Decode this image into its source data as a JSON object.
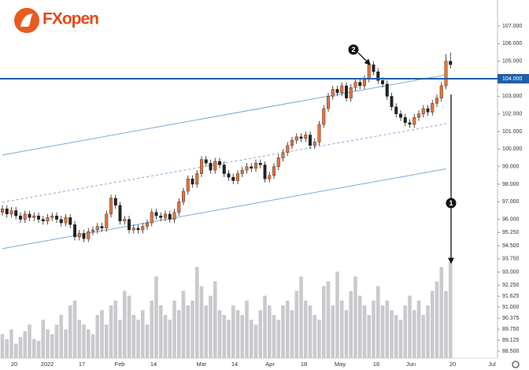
{
  "chart_data": {
    "type": "candlestick",
    "logo": "FXopen",
    "open": [
      96.4,
      96.6,
      96.3,
      96.5,
      96.2,
      96.0,
      96.3,
      96.1,
      96.2,
      96.0,
      95.9,
      96.1,
      96.2,
      96.0,
      95.8,
      96.1,
      95.7,
      95.0,
      95.2,
      94.9,
      95.3,
      95.4,
      95.6,
      95.5,
      96.3,
      97.2,
      96.8,
      95.9,
      96.0,
      95.4,
      95.5,
      95.4,
      95.6,
      95.8,
      96.4,
      96.2,
      96.1,
      96.3,
      96.0,
      96.4,
      97.0,
      97.6,
      98.3,
      98.0,
      98.6,
      99.4,
      99.2,
      98.8,
      99.3,
      99.1,
      98.6,
      98.4,
      98.2,
      98.6,
      98.8,
      99.0,
      98.9,
      99.2,
      99.1,
      98.3,
      98.5,
      99.0,
      99.5,
      99.8,
      100.2,
      100.5,
      100.7,
      100.6,
      100.8,
      100.2,
      100.4,
      101.4,
      102.3,
      103.0,
      103.4,
      103.2,
      103.6,
      102.9,
      103.5,
      103.8,
      103.6,
      104.0,
      104.8,
      104.4,
      103.9,
      103.7,
      103.0,
      102.4,
      102.0,
      101.8,
      101.5,
      101.4,
      101.8,
      102.0,
      102.3,
      102.1,
      102.6,
      102.9,
      103.6,
      105.0
    ],
    "high": [
      96.8,
      96.8,
      96.7,
      96.7,
      96.4,
      96.5,
      96.5,
      96.4,
      96.4,
      96.2,
      96.3,
      96.4,
      96.4,
      96.2,
      96.3,
      96.3,
      95.9,
      95.4,
      95.4,
      95.5,
      95.6,
      95.8,
      95.8,
      96.5,
      97.4,
      97.4,
      97.0,
      96.2,
      96.2,
      95.7,
      95.7,
      95.8,
      96.0,
      96.6,
      96.6,
      96.4,
      96.5,
      96.5,
      96.6,
      97.2,
      97.8,
      98.5,
      98.5,
      98.8,
      99.6,
      99.6,
      99.4,
      99.5,
      99.5,
      99.3,
      98.8,
      98.6,
      98.8,
      99.0,
      99.2,
      99.2,
      99.4,
      99.4,
      99.3,
      98.7,
      99.2,
      99.7,
      100.0,
      100.4,
      100.7,
      100.9,
      100.9,
      101.0,
      101.0,
      100.6,
      101.6,
      102.5,
      103.2,
      103.6,
      103.6,
      103.8,
      103.8,
      103.7,
      104.0,
      104.0,
      104.2,
      105.0,
      105.0,
      104.6,
      104.1,
      103.9,
      103.2,
      102.6,
      102.2,
      102.0,
      101.7,
      102.0,
      102.2,
      102.5,
      102.5,
      102.8,
      103.1,
      103.8,
      105.4,
      105.5
    ],
    "low": [
      96.2,
      96.1,
      96.1,
      96.0,
      95.8,
      95.8,
      95.9,
      95.9,
      95.8,
      95.7,
      95.7,
      95.9,
      95.8,
      95.6,
      95.6,
      95.5,
      94.8,
      94.8,
      94.7,
      94.7,
      95.1,
      95.2,
      95.3,
      95.3,
      96.1,
      96.6,
      95.7,
      95.7,
      95.2,
      95.2,
      95.2,
      95.2,
      95.4,
      95.6,
      96.0,
      95.9,
      95.9,
      95.8,
      95.8,
      96.2,
      96.8,
      97.4,
      97.8,
      97.8,
      98.4,
      99.0,
      98.6,
      98.6,
      98.9,
      98.4,
      98.2,
      98.0,
      98.0,
      98.4,
      98.6,
      98.7,
      98.7,
      98.9,
      98.1,
      98.1,
      98.3,
      98.8,
      99.3,
      99.6,
      100.0,
      100.3,
      100.4,
      100.4,
      100.0,
      100.0,
      100.2,
      101.2,
      102.1,
      102.8,
      103.0,
      103.0,
      102.7,
      102.7,
      103.3,
      103.4,
      103.4,
      103.8,
      104.2,
      103.7,
      103.5,
      102.8,
      102.2,
      101.8,
      101.6,
      101.3,
      101.2,
      101.2,
      101.6,
      101.8,
      101.9,
      101.9,
      102.4,
      102.7,
      103.4,
      104.6
    ],
    "close": [
      96.6,
      96.3,
      96.5,
      96.2,
      96.0,
      96.3,
      96.1,
      96.2,
      96.0,
      95.9,
      96.1,
      96.2,
      96.0,
      95.8,
      96.1,
      95.7,
      95.0,
      95.2,
      94.9,
      95.3,
      95.4,
      95.6,
      95.5,
      96.3,
      97.2,
      96.8,
      95.9,
      96.0,
      95.4,
      95.5,
      95.4,
      95.6,
      95.8,
      96.4,
      96.2,
      96.1,
      96.3,
      96.0,
      96.4,
      97.0,
      97.6,
      98.3,
      98.0,
      98.6,
      99.4,
      99.2,
      98.8,
      99.3,
      99.1,
      98.6,
      98.4,
      98.2,
      98.6,
      98.8,
      99.0,
      98.9,
      99.2,
      99.1,
      98.3,
      98.5,
      99.0,
      99.5,
      99.8,
      100.2,
      100.5,
      100.7,
      100.6,
      100.8,
      100.2,
      100.4,
      101.4,
      102.3,
      103.0,
      103.4,
      103.2,
      103.6,
      102.9,
      103.5,
      103.8,
      103.6,
      104.0,
      104.8,
      104.4,
      103.9,
      103.7,
      103.0,
      102.4,
      102.0,
      101.8,
      101.5,
      101.4,
      101.8,
      102.0,
      102.3,
      102.1,
      102.6,
      102.9,
      103.6,
      105.0,
      104.8
    ],
    "volume": [
      25,
      20,
      30,
      15,
      22,
      28,
      35,
      20,
      18,
      40,
      30,
      25,
      35,
      45,
      30,
      55,
      60,
      40,
      35,
      30,
      25,
      45,
      50,
      35,
      55,
      60,
      40,
      70,
      65,
      45,
      40,
      50,
      35,
      60,
      85,
      55,
      45,
      40,
      60,
      50,
      70,
      55,
      60,
      95,
      75,
      55,
      65,
      80,
      50,
      45,
      40,
      55,
      50,
      45,
      60,
      40,
      35,
      50,
      65,
      55,
      45,
      40,
      55,
      60,
      50,
      70,
      85,
      60,
      55,
      45,
      40,
      75,
      80,
      55,
      90,
      60,
      50,
      70,
      85,
      65,
      55,
      45,
      60,
      75,
      55,
      60,
      50,
      45,
      40,
      55,
      65,
      50,
      60,
      45,
      55,
      70,
      80,
      95,
      70,
      100
    ],
    "up_color": "#e8733a",
    "down_color": "#222222",
    "volume_color": "#c9c9ce",
    "ylim": [
      88.1,
      108.48
    ],
    "yticks": [
      {
        "value": 107,
        "label": "107.000"
      },
      {
        "value": 106,
        "label": "106.000"
      },
      {
        "value": 105,
        "label": "105.000"
      },
      {
        "value": 103,
        "label": "103.000"
      },
      {
        "value": 102,
        "label": "102.000"
      },
      {
        "value": 101,
        "label": "101.000"
      },
      {
        "value": 100,
        "label": "100.000"
      },
      {
        "value": 99,
        "label": "99.000"
      },
      {
        "value": 98,
        "label": "98.000"
      },
      {
        "value": 97,
        "label": "97.000"
      },
      {
        "value": 96,
        "label": "96.000"
      },
      {
        "value": 95.25,
        "label": "95.250"
      },
      {
        "value": 94.5,
        "label": "94.500"
      },
      {
        "value": 93.75,
        "label": "93.750"
      },
      {
        "value": 93,
        "label": "93.000"
      },
      {
        "value": 92.25,
        "label": "92.250"
      },
      {
        "value": 91.625,
        "label": "91.625"
      },
      {
        "value": 91,
        "label": "91.000"
      },
      {
        "value": 90.375,
        "label": "90.375"
      },
      {
        "value": 89.75,
        "label": "89.750"
      },
      {
        "value": 89.125,
        "label": "89.125"
      },
      {
        "value": 88.5,
        "label": "88.500"
      }
    ],
    "x_labels": [
      "20",
      "2022",
      "17",
      "Feb",
      "14",
      "Mar",
      "14",
      "Apr",
      "18",
      "May",
      "16",
      "Jun",
      "20",
      "Jul"
    ],
    "hline": {
      "value": 104,
      "label": "104.000",
      "color": "#1f5fa8"
    },
    "trend_lines": [
      {
        "from": [
          0,
          99.66
        ],
        "to": [
          98,
          104.22
        ],
        "dashed": false
      },
      {
        "from": [
          0,
          96.97
        ],
        "to": [
          98,
          101.43
        ],
        "dashed": true
      },
      {
        "from": [
          0,
          94.33
        ],
        "to": [
          98,
          98.87
        ],
        "dashed": false
      }
    ],
    "annotations": [
      {
        "text": "2"
      },
      {
        "text": "1"
      }
    ]
  }
}
